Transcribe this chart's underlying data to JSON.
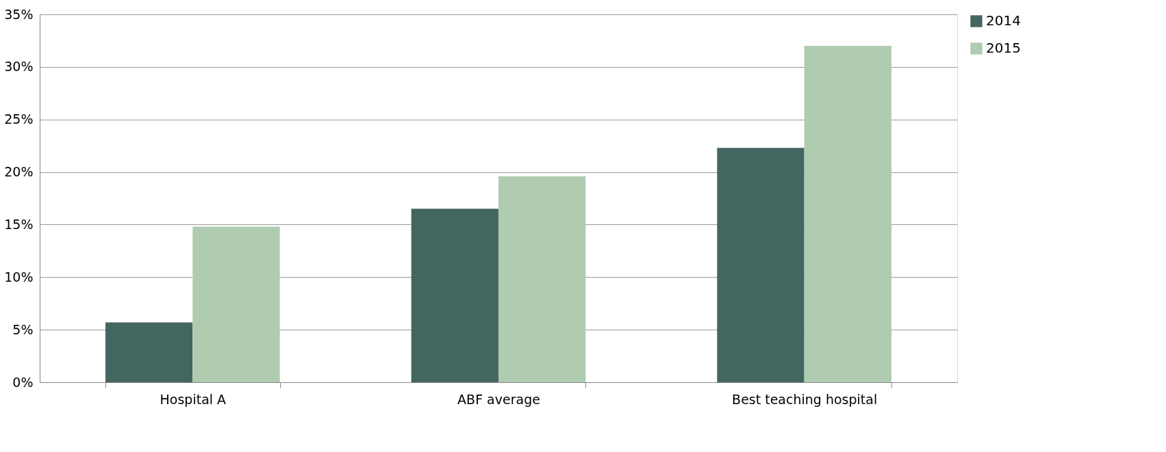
{
  "chart_data": {
    "type": "bar",
    "categories": [
      "Hospital A",
      "ABF average",
      "Best teaching hospital"
    ],
    "series": [
      {
        "name": "2014",
        "color": "#436660",
        "values": [
          5.7,
          16.5,
          22.3
        ]
      },
      {
        "name": "2015",
        "color": "#afcbb0",
        "values": [
          14.8,
          19.6,
          32
        ]
      }
    ],
    "ylim": [
      0,
      35
    ],
    "yticks": [
      {
        "value": 0,
        "label": "0%"
      },
      {
        "value": 5,
        "label": "5%"
      },
      {
        "value": 10,
        "label": "10%"
      },
      {
        "value": 15,
        "label": "15%"
      },
      {
        "value": 20,
        "label": "20%"
      },
      {
        "value": 25,
        "label": "25%"
      },
      {
        "value": 30,
        "label": "30%"
      },
      {
        "value": 35,
        "label": "35%"
      }
    ],
    "grid": "y",
    "legend": "right"
  }
}
